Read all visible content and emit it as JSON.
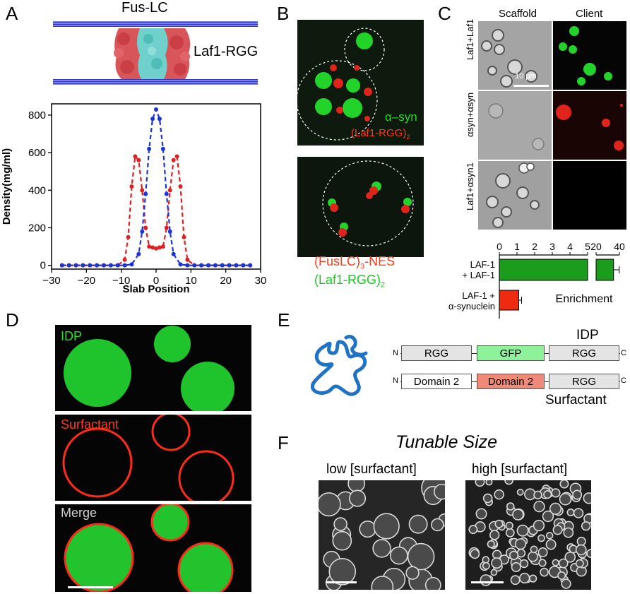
{
  "panels": {
    "A": "A",
    "B": "B",
    "C": "C",
    "D": "D",
    "E": "E",
    "F": "F"
  },
  "panel_a": {
    "top_label": "Fus-LC",
    "side_label": "Laf1-RGG",
    "colors": {
      "fus": "#1fb3b0",
      "laf": "#c0202a",
      "red_series": "#e02020",
      "blue_series": "#1a33d6"
    }
  },
  "chart_data": [
    {
      "type": "line",
      "xlabel": "Slab Position",
      "ylabel": "Density(mg/ml)",
      "xlim": [
        -30,
        30
      ],
      "ylim": [
        -20,
        860
      ],
      "xticks": [
        -30,
        -20,
        -10,
        0,
        10,
        20,
        30
      ],
      "xtick_labels": [
        "−30",
        "−20",
        "−10",
        "0",
        "10",
        "20",
        "30"
      ],
      "yticks": [
        0,
        200,
        400,
        600,
        800
      ],
      "series": [
        {
          "color": "#e02020",
          "x": [
            -27,
            -25,
            -23,
            -21,
            -19,
            -17,
            -15,
            -13,
            -11,
            -9,
            -8,
            -7,
            -6,
            -5,
            -4,
            -3,
            -2,
            -1,
            0,
            1,
            2,
            3,
            4,
            5,
            6,
            7,
            8,
            9,
            11,
            13,
            15,
            17,
            19,
            21,
            23,
            25,
            27
          ],
          "y": [
            0,
            0,
            0,
            0,
            0,
            0,
            0,
            0,
            0,
            30,
            150,
            420,
            580,
            560,
            400,
            200,
            100,
            95,
            90,
            95,
            100,
            200,
            400,
            560,
            580,
            420,
            150,
            30,
            0,
            0,
            0,
            0,
            0,
            0,
            0,
            0,
            0
          ]
        },
        {
          "color": "#1a33d6",
          "x": [
            -27,
            -25,
            -23,
            -21,
            -19,
            -17,
            -15,
            -13,
            -11,
            -9,
            -7,
            -5,
            -4,
            -3,
            -2,
            -1,
            0,
            1,
            2,
            3,
            4,
            5,
            7,
            9,
            11,
            13,
            15,
            17,
            19,
            21,
            23,
            25,
            27
          ],
          "y": [
            0,
            0,
            0,
            0,
            0,
            0,
            0,
            0,
            0,
            0,
            5,
            60,
            180,
            380,
            620,
            780,
            830,
            780,
            620,
            380,
            180,
            60,
            5,
            0,
            0,
            0,
            0,
            0,
            0,
            0,
            0,
            0,
            0
          ]
        }
      ]
    },
    {
      "type": "bar",
      "categories": [
        "LAF-1\n+ LAF-1",
        "LAF-1 +\nα-synuclein"
      ],
      "category_lines": [
        [
          "LAF-1",
          "+ LAF-1"
        ],
        [
          "LAF-1 +",
          "α-synuclein"
        ]
      ],
      "values": [
        35,
        1.1
      ],
      "colors": [
        "#1c9c1c",
        "#ee2b10"
      ],
      "xlabel": "Enrichment",
      "axis_break": [
        5,
        20
      ],
      "ticks_left": [
        0,
        1,
        2,
        3,
        4,
        5
      ],
      "ticks_right": [
        20,
        40
      ]
    }
  ],
  "panel_b": {
    "top_green_label": "α–syn",
    "top_red_label": "(Laf1-RGG)",
    "top_red_sub": "2",
    "bottom_red_label": "(FusLC)",
    "bottom_red_sub": "3",
    "bottom_red_suffix": "-NES",
    "bottom_green_label": "(Laf1-RGG)",
    "bottom_green_sub": "2"
  },
  "panel_c": {
    "col_scaffold": "Scaffold",
    "col_client": "Client",
    "rows": [
      "Laf1+Laf1",
      "αsyn+αsyn",
      "Laf1+αsyn1"
    ],
    "scale_label": "10 μm"
  },
  "panel_d": {
    "labels": [
      "IDP",
      "Surfactant",
      "Merge"
    ],
    "colors": {
      "green": "#00cc33",
      "red": "#ff2a1a"
    }
  },
  "panel_e": {
    "rows": [
      {
        "n": "N",
        "domains": [
          "RGG",
          "GFP",
          "RGG"
        ],
        "c": "C",
        "name": "IDP"
      },
      {
        "n": "N",
        "domains": [
          "Domain 2",
          "Domain 2",
          "RGG"
        ],
        "c": "C",
        "name": "Surfactant"
      }
    ]
  },
  "panel_f": {
    "title": "Tunable Size",
    "left_label": "low [surfactant]",
    "right_label": "high [surfactant]"
  }
}
